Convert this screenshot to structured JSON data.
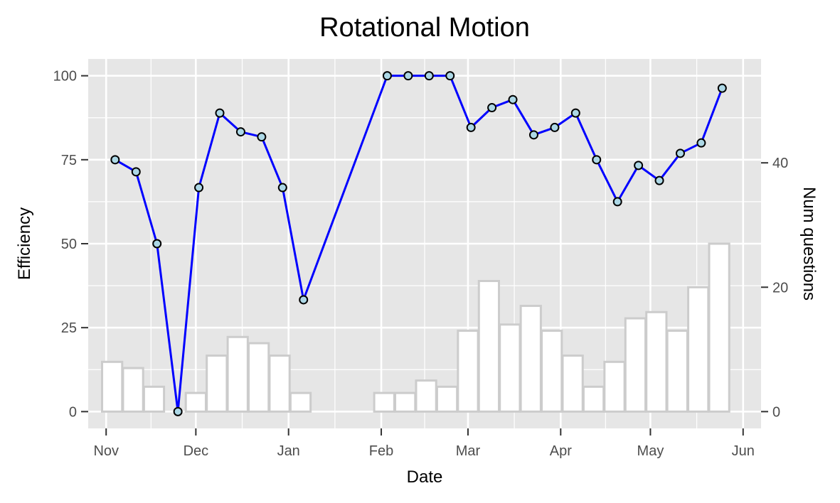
{
  "chart_data": {
    "type": "line+bar",
    "title": "Rotational Motion",
    "xlabel": "Date",
    "ylabel": "Efficiency",
    "y2label": "Num questions",
    "x_ticks": [
      "Nov",
      "Dec",
      "Jan",
      "Feb",
      "Mar",
      "Apr",
      "May",
      "Jun"
    ],
    "x_tick_dates": [
      "2023-11-01",
      "2023-12-01",
      "2024-01-01",
      "2024-02-01",
      "2024-03-01",
      "2024-04-01",
      "2024-05-01",
      "2024-06-01"
    ],
    "y_ticks": [
      0,
      25,
      50,
      75,
      100
    ],
    "y2_ticks": [
      0,
      20,
      40
    ],
    "ylim": [
      -5,
      105
    ],
    "y2lim": [
      -2.7,
      56.7
    ],
    "xlim": [
      "2023-10-26",
      "2024-06-07"
    ],
    "grid": true,
    "efficiency": {
      "x": [
        "2023-11-04",
        "2023-11-11",
        "2023-11-18",
        "2023-11-25",
        "2023-12-02",
        "2023-12-09",
        "2023-12-16",
        "2023-12-23",
        "2023-12-30",
        "2024-01-06",
        "2024-02-03",
        "2024-02-10",
        "2024-02-17",
        "2024-02-24",
        "2024-03-02",
        "2024-03-09",
        "2024-03-16",
        "2024-03-23",
        "2024-03-30",
        "2024-04-06",
        "2024-04-13",
        "2024-04-20",
        "2024-04-27",
        "2024-05-04",
        "2024-05-11",
        "2024-05-18",
        "2024-05-25"
      ],
      "values": [
        75,
        71.4,
        50,
        0,
        66.7,
        88.9,
        83.3,
        81.8,
        66.7,
        33.3,
        100,
        100,
        100,
        100,
        84.6,
        90.5,
        92.9,
        82.4,
        84.6,
        88.9,
        75,
        62.5,
        73.3,
        68.8,
        76.9,
        80,
        96.3
      ]
    },
    "num_questions": {
      "x": [
        "2023-11-03",
        "2023-11-10",
        "2023-11-17",
        "2023-11-24",
        "2023-12-01",
        "2023-12-08",
        "2023-12-15",
        "2023-12-22",
        "2023-12-29",
        "2024-01-05",
        "2024-02-02",
        "2024-02-09",
        "2024-02-16",
        "2024-02-23",
        "2024-03-01",
        "2024-03-08",
        "2024-03-15",
        "2024-03-22",
        "2024-03-29",
        "2024-04-05",
        "2024-04-12",
        "2024-04-19",
        "2024-04-26",
        "2024-05-03",
        "2024-05-10",
        "2024-05-17",
        "2024-05-24"
      ],
      "values": [
        8,
        7,
        4,
        0,
        3,
        9,
        12,
        11,
        9,
        3,
        3,
        3,
        5,
        4,
        13,
        21,
        14,
        17,
        13,
        9,
        4,
        8,
        15,
        16,
        13,
        20,
        27
      ]
    },
    "colors": {
      "panel": "#e6e6e6",
      "grid": "#ffffff",
      "line": "#0000ff",
      "point_fill": "#add8e6",
      "point_stroke": "#000000",
      "bar_fill": "#ffffff",
      "bar_stroke": "#cccccc"
    }
  }
}
